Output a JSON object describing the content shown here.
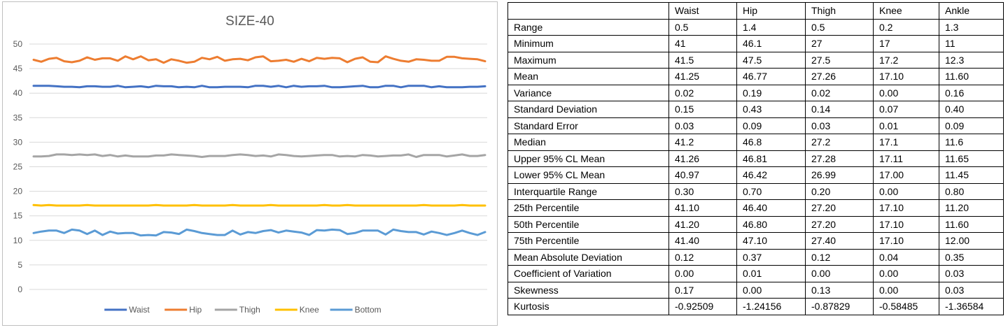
{
  "chart_data": {
    "type": "line",
    "title": "SIZE-40",
    "ylim": [
      0,
      50
    ],
    "yticks": [
      "0",
      "5",
      "10",
      "15",
      "20",
      "25",
      "30",
      "35",
      "40",
      "45",
      "50"
    ],
    "grid": true,
    "legend_position": "bottom",
    "n_points": 60,
    "series": [
      {
        "name": "Waist",
        "color": "#4472C4",
        "values": [
          41.5,
          41.5,
          41.5,
          41.4,
          41.3,
          41.3,
          41.2,
          41.4,
          41.4,
          41.3,
          41.3,
          41.5,
          41.2,
          41.3,
          41.4,
          41.2,
          41.5,
          41.4,
          41.4,
          41.2,
          41.3,
          41.2,
          41.5,
          41.2,
          41.2,
          41.3,
          41.3,
          41.3,
          41.2,
          41.5,
          41.5,
          41.3,
          41.5,
          41.2,
          41.5,
          41.3,
          41.4,
          41.4,
          41.5,
          41.2,
          41.2,
          41.3,
          41.4,
          41.5,
          41.2,
          41.2,
          41.5,
          41.5,
          41.2,
          41.5,
          41.5,
          41.5,
          41.2,
          41.4,
          41.2,
          41.2,
          41.2,
          41.3,
          41.3,
          41.4
        ]
      },
      {
        "name": "Hip",
        "color": "#ED7D31",
        "values": [
          46.8,
          46.4,
          47.0,
          47.2,
          46.5,
          46.3,
          46.6,
          47.3,
          46.8,
          47.1,
          47.1,
          46.6,
          47.5,
          46.9,
          47.5,
          46.7,
          46.9,
          46.2,
          46.9,
          46.6,
          46.2,
          46.4,
          47.2,
          46.9,
          47.4,
          46.6,
          46.9,
          47.0,
          46.7,
          47.3,
          47.5,
          46.5,
          46.6,
          46.8,
          46.4,
          47.0,
          46.5,
          47.2,
          47.0,
          47.2,
          47.1,
          46.3,
          47.0,
          47.3,
          46.4,
          46.3,
          47.5,
          47.0,
          46.6,
          46.4,
          46.9,
          46.8,
          46.6,
          46.6,
          47.4,
          47.4,
          47.1,
          47.0,
          46.9,
          46.5
        ]
      },
      {
        "name": "Thigh",
        "color": "#A5A5A5",
        "values": [
          27.1,
          27.1,
          27.2,
          27.5,
          27.5,
          27.4,
          27.5,
          27.4,
          27.5,
          27.2,
          27.4,
          27.1,
          27.3,
          27.1,
          27.1,
          27.1,
          27.3,
          27.3,
          27.5,
          27.4,
          27.3,
          27.2,
          27.0,
          27.2,
          27.2,
          27.2,
          27.4,
          27.5,
          27.4,
          27.2,
          27.3,
          27.1,
          27.5,
          27.4,
          27.2,
          27.1,
          27.2,
          27.3,
          27.4,
          27.4,
          27.1,
          27.2,
          27.1,
          27.4,
          27.3,
          27.1,
          27.2,
          27.3,
          27.3,
          27.5,
          27.0,
          27.4,
          27.4,
          27.4,
          27.1,
          27.3,
          27.5,
          27.2,
          27.2,
          27.4
        ]
      },
      {
        "name": "Knee",
        "color": "#FFC000",
        "values": [
          17.2,
          17.1,
          17.2,
          17.1,
          17.1,
          17.1,
          17.1,
          17.2,
          17.1,
          17.1,
          17.1,
          17.1,
          17.1,
          17.1,
          17.1,
          17.1,
          17.2,
          17.1,
          17.1,
          17.1,
          17.1,
          17.2,
          17.1,
          17.1,
          17.1,
          17.1,
          17.2,
          17.1,
          17.1,
          17.1,
          17.1,
          17.2,
          17.1,
          17.1,
          17.1,
          17.1,
          17.1,
          17.1,
          17.2,
          17.1,
          17.1,
          17.2,
          17.1,
          17.1,
          17.1,
          17.1,
          17.1,
          17.1,
          17.1,
          17.1,
          17.1,
          17.2,
          17.1,
          17.1,
          17.1,
          17.1,
          17.2,
          17.1,
          17.1,
          17.1
        ]
      },
      {
        "name": "Bottom",
        "color": "#5B9BD5",
        "values": [
          11.5,
          11.8,
          12.0,
          12.0,
          11.5,
          12.2,
          12.0,
          11.3,
          12.0,
          11.1,
          11.8,
          11.4,
          11.5,
          11.5,
          11.0,
          11.1,
          11.0,
          11.7,
          11.6,
          11.3,
          12.2,
          11.9,
          11.5,
          11.3,
          11.1,
          11.1,
          12.0,
          11.2,
          11.7,
          11.5,
          11.9,
          12.1,
          11.6,
          12.0,
          11.8,
          11.6,
          11.1,
          12.1,
          12.0,
          12.2,
          12.1,
          11.3,
          11.5,
          12.0,
          12.0,
          12.0,
          11.2,
          12.2,
          11.9,
          11.7,
          11.7,
          11.2,
          11.8,
          11.5,
          11.1,
          11.5,
          12.0,
          11.5,
          11.1,
          11.7
        ]
      }
    ]
  },
  "table": {
    "headers": [
      "Waist",
      "Hip",
      "Thigh",
      "Knee",
      "Ankle"
    ],
    "rows": [
      {
        "label": "Range",
        "values": [
          "0.5",
          "1.4",
          "0.5",
          "0.2",
          "1.3"
        ]
      },
      {
        "label": "Minimum",
        "values": [
          "41",
          "46.1",
          "27",
          "17",
          "11"
        ]
      },
      {
        "label": "Maximum",
        "values": [
          "41.5",
          "47.5",
          "27.5",
          "17.2",
          "12.3"
        ]
      },
      {
        "label": "Mean",
        "values": [
          "41.25",
          "46.77",
          "27.26",
          "17.10",
          "11.60"
        ]
      },
      {
        "label": "Variance",
        "values": [
          "0.02",
          "0.19",
          "0.02",
          "0.00",
          "0.16"
        ]
      },
      {
        "label": "Standard Deviation",
        "values": [
          "0.15",
          "0.43",
          "0.14",
          "0.07",
          "0.40"
        ]
      },
      {
        "label": "Standard Error",
        "values": [
          "0.03",
          "0.09",
          "0.03",
          "0.01",
          "0.09"
        ]
      },
      {
        "label": "Median",
        "values": [
          "41.2",
          "46.8",
          "27.2",
          "17.1",
          "11.6"
        ]
      },
      {
        "label": "Upper 95% CL Mean",
        "values": [
          "41.26",
          "46.81",
          "27.28",
          "17.11",
          "11.65"
        ]
      },
      {
        "label": "Lower 95% CL Mean",
        "values": [
          "40.97",
          "46.42",
          "26.99",
          "17.00",
          "11.45"
        ]
      },
      {
        "label": "Interquartile Range",
        "values": [
          "0.30",
          "0.70",
          "0.20",
          "0.00",
          "0.80"
        ]
      },
      {
        "label": "25th Percentile",
        "values": [
          "41.10",
          "46.40",
          "27.20",
          "17.10",
          "11.20"
        ]
      },
      {
        "label": "50th Percentile",
        "values": [
          "41.20",
          "46.80",
          "27.20",
          "17.10",
          "11.60"
        ]
      },
      {
        "label": "75th Percentile",
        "values": [
          "41.40",
          "47.10",
          "27.40",
          "17.10",
          "12.00"
        ]
      },
      {
        "label": "Mean Absolute Deviation",
        "values": [
          "0.12",
          "0.37",
          "0.12",
          "0.04",
          "0.35"
        ]
      },
      {
        "label": "Coefficient of Variation",
        "values": [
          "0.00",
          "0.01",
          "0.00",
          "0.00",
          "0.03"
        ]
      },
      {
        "label": "Skewness",
        "values": [
          "0.17",
          "0.00",
          "0.13",
          "0.00",
          "0.03"
        ]
      },
      {
        "label": "Kurtosis",
        "values": [
          "-0.92509",
          "-1.24156",
          "-0.87829",
          "-0.58485",
          "-1.36584"
        ]
      }
    ]
  }
}
